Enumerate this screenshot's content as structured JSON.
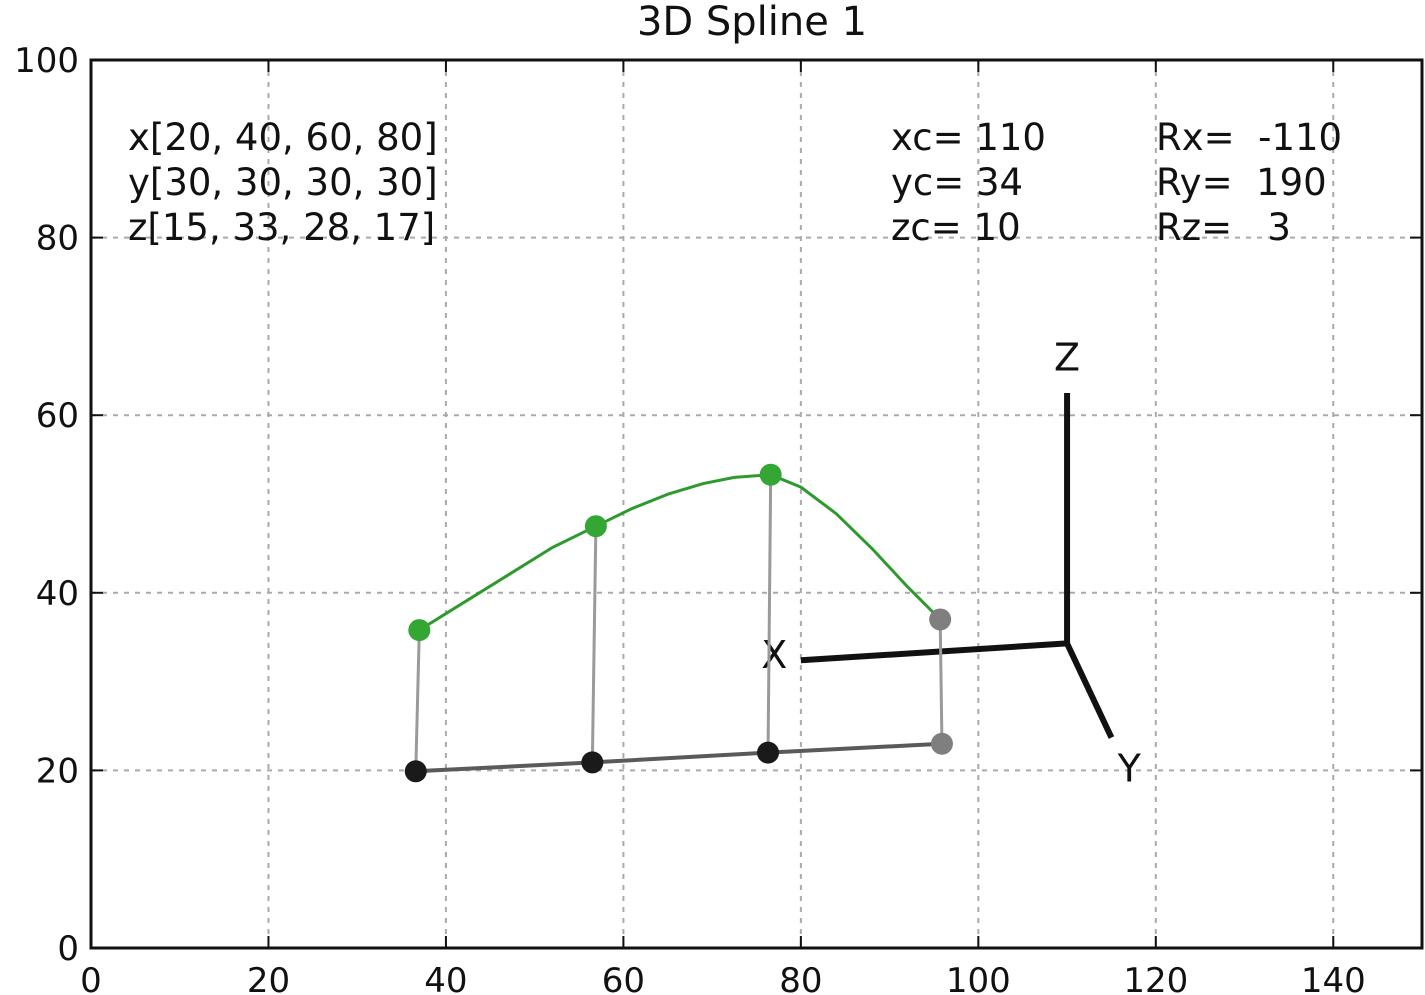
{
  "chart_data": {
    "type": "line",
    "title": "3D Spline 1",
    "xlabel": "",
    "ylabel": "",
    "xlim": [
      0,
      150
    ],
    "ylim": [
      0,
      100
    ],
    "x_ticks": [
      0,
      20,
      40,
      60,
      80,
      100,
      120,
      140
    ],
    "y_ticks": [
      0,
      20,
      40,
      60,
      80,
      100
    ],
    "grid": true,
    "annotations": {
      "arrays": [
        "x[20, 40, 60, 80]",
        "y[30, 30, 30, 30]",
        "z[15, 33, 28, 17]"
      ],
      "center": [
        "xc= 110",
        "yc= 34",
        "zc= 10"
      ],
      "rotation": [
        "Rx=  -110",
        "Ry=  190",
        "Rz=   3"
      ]
    },
    "spline_points": [
      {
        "x": 37.0,
        "y": 35.8
      },
      {
        "x": 56.9,
        "y": 47.5
      },
      {
        "x": 76.6,
        "y": 53.3
      },
      {
        "x": 95.7,
        "y": 37.0
      }
    ],
    "spline_curve": [
      [
        37.0,
        35.8
      ],
      [
        42.0,
        38.9
      ],
      [
        47.0,
        42.0
      ],
      [
        52.0,
        45.1
      ],
      [
        56.9,
        47.5
      ],
      [
        61.0,
        49.5
      ],
      [
        65.0,
        51.1
      ],
      [
        69.0,
        52.3
      ],
      [
        72.5,
        53.0
      ],
      [
        76.6,
        53.3
      ],
      [
        80.0,
        51.9
      ],
      [
        84.0,
        48.9
      ],
      [
        88.0,
        45.0
      ],
      [
        92.0,
        40.7
      ],
      [
        95.7,
        37.0
      ]
    ],
    "base_points": [
      {
        "x": 36.6,
        "y": 19.9
      },
      {
        "x": 56.5,
        "y": 20.9
      },
      {
        "x": 76.3,
        "y": 22.0
      },
      {
        "x": 95.9,
        "y": 23.0
      }
    ],
    "coord_axes": {
      "origin": [
        110.0,
        34.3
      ],
      "x_end": [
        80.0,
        32.4
      ],
      "y_end": [
        115.0,
        23.7
      ],
      "z_end": [
        110.0,
        62.5
      ],
      "labels": {
        "x": "X",
        "y": "Y",
        "z": "Z"
      },
      "label_positions": {
        "x": [
          77.0,
          33.0
        ],
        "y": [
          117.0,
          20.2
        ],
        "z": [
          110.0,
          66.5
        ]
      }
    },
    "colors": {
      "spline": "#2e9a2e",
      "spline_point": "#33a633",
      "drop_line": "#9a9a9a",
      "base_line": "#5a5a5a",
      "base_point": "#1a1a1a",
      "last_point": "#7f7f7f",
      "axis_line": "#111111",
      "grid": "#aaaaaa"
    }
  }
}
